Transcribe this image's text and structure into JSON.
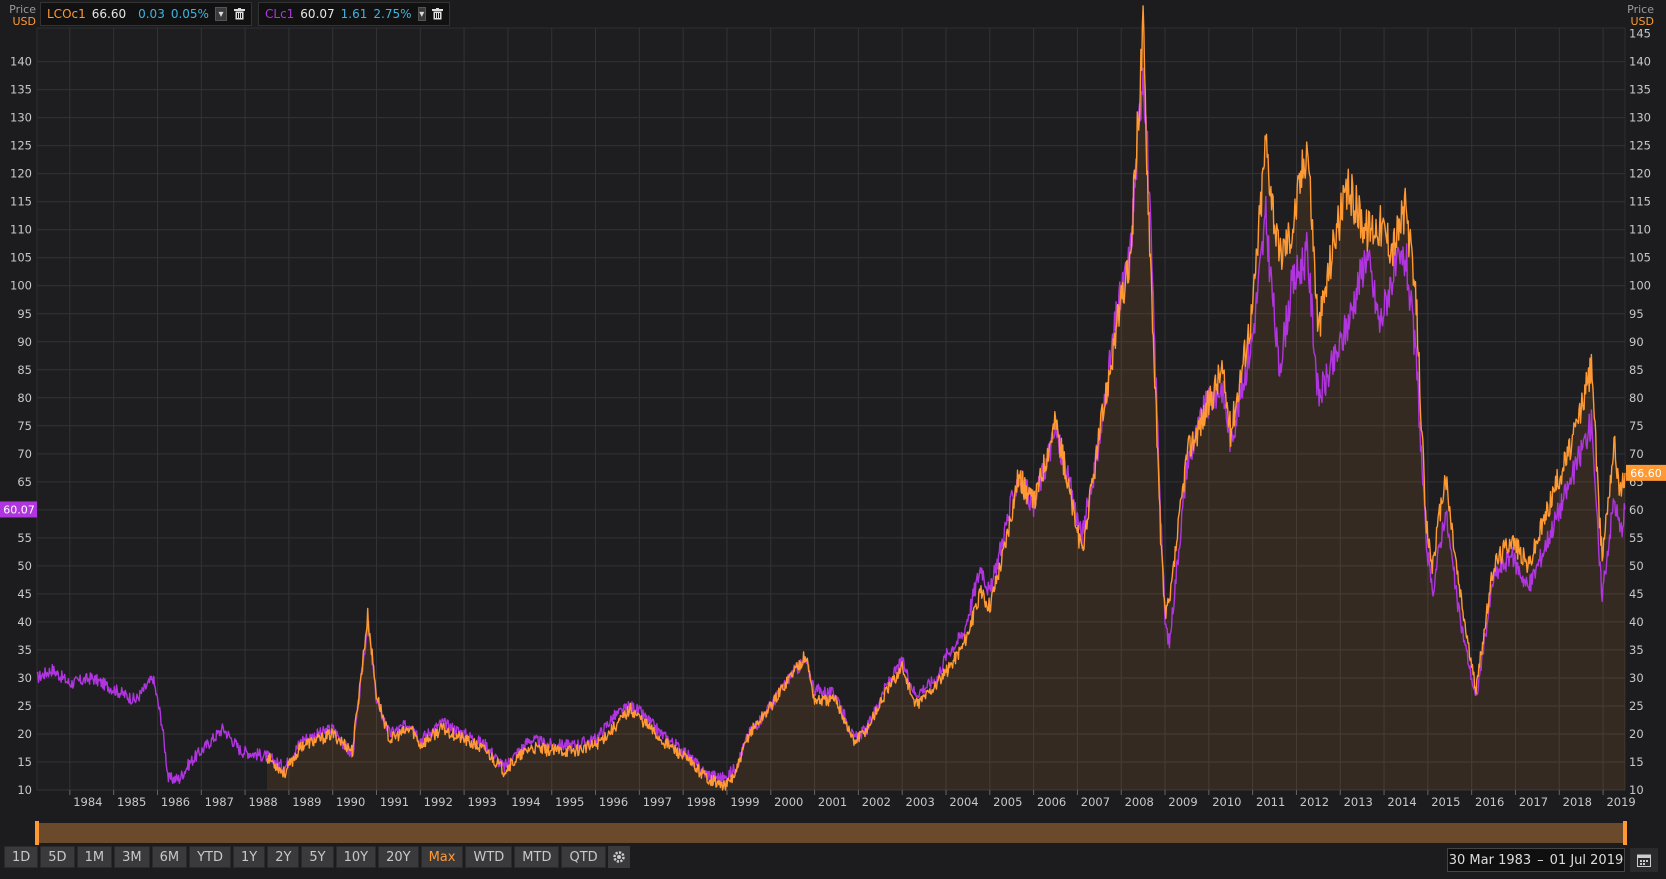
{
  "legend": [
    {
      "symbol": "LCOc1",
      "value": "66.60",
      "change": "0.03",
      "pct": "0.05%",
      "color": "#ff9933"
    },
    {
      "symbol": "CLc1",
      "value": "60.07",
      "change": "1.61",
      "pct": "2.75%",
      "color": "#b035e0"
    }
  ],
  "axis_header": {
    "left_price": "Price",
    "left_unit": "USD",
    "right_price": "Price",
    "right_unit": "USD"
  },
  "last_labels": {
    "left": "60.07",
    "right": "66.60"
  },
  "ranges": [
    "1D",
    "5D",
    "1M",
    "3M",
    "6M",
    "YTD",
    "1Y",
    "2Y",
    "5Y",
    "10Y",
    "20Y",
    "Max",
    "WTD",
    "MTD",
    "QTD"
  ],
  "active_range": "Max",
  "date_range": {
    "from": "30 Mar 1983",
    "to": "01 Jul 2019"
  },
  "chart_data": {
    "type": "line",
    "xlabel": "",
    "ylabel": "Price USD",
    "ylim": [
      10,
      146
    ],
    "xlim": [
      1983.25,
      2019.5
    ],
    "yticks": [
      10,
      15,
      20,
      25,
      30,
      35,
      40,
      45,
      50,
      55,
      60,
      65,
      70,
      75,
      80,
      85,
      90,
      95,
      100,
      105,
      110,
      115,
      120,
      125,
      130,
      135,
      140
    ],
    "yticks_right": [
      10,
      15,
      20,
      25,
      30,
      35,
      40,
      45,
      50,
      55,
      60,
      65,
      70,
      75,
      80,
      85,
      90,
      95,
      100,
      105,
      110,
      115,
      120,
      125,
      130,
      135,
      140,
      145
    ],
    "xticks": [
      "1984",
      "1985",
      "1986",
      "1987",
      "1988",
      "1989",
      "1990",
      "1991",
      "1992",
      "1993",
      "1994",
      "1995",
      "1996",
      "1997",
      "1998",
      "1999",
      "2000",
      "2001",
      "2002",
      "2003",
      "2004",
      "2005",
      "2006",
      "2007",
      "2008",
      "2009",
      "2010",
      "2011",
      "2012",
      "2013",
      "2014",
      "2015",
      "2016",
      "2017",
      "2018",
      "2019"
    ],
    "grid": true,
    "series": [
      {
        "name": "CLc1",
        "color": "#b035e0",
        "points": [
          [
            1983.25,
            30
          ],
          [
            1983.6,
            31.5
          ],
          [
            1984.0,
            29
          ],
          [
            1984.5,
            30
          ],
          [
            1985.0,
            28
          ],
          [
            1985.5,
            26
          ],
          [
            1985.9,
            30
          ],
          [
            1986.1,
            22
          ],
          [
            1986.25,
            12
          ],
          [
            1986.5,
            12
          ],
          [
            1986.75,
            15
          ],
          [
            1987.0,
            17
          ],
          [
            1987.5,
            21
          ],
          [
            1987.9,
            17
          ],
          [
            1988.5,
            16
          ],
          [
            1988.9,
            14
          ],
          [
            1989.3,
            19
          ],
          [
            1989.7,
            20
          ],
          [
            1990.0,
            21
          ],
          [
            1990.45,
            16
          ],
          [
            1990.7,
            33
          ],
          [
            1990.8,
            40
          ],
          [
            1991.0,
            26
          ],
          [
            1991.3,
            20
          ],
          [
            1991.8,
            22
          ],
          [
            1992.0,
            19
          ],
          [
            1992.5,
            22
          ],
          [
            1993.0,
            20
          ],
          [
            1993.5,
            18
          ],
          [
            1993.9,
            14
          ],
          [
            1994.5,
            19
          ],
          [
            1995.0,
            18
          ],
          [
            1995.5,
            18
          ],
          [
            1996.0,
            19
          ],
          [
            1996.4,
            23
          ],
          [
            1996.8,
            25
          ],
          [
            1997.0,
            24
          ],
          [
            1997.5,
            20
          ],
          [
            1998.0,
            17
          ],
          [
            1998.5,
            13
          ],
          [
            1998.95,
            12
          ],
          [
            1999.2,
            14
          ],
          [
            1999.5,
            20
          ],
          [
            2000.0,
            25
          ],
          [
            2000.5,
            31
          ],
          [
            2000.8,
            33
          ],
          [
            2001.0,
            28
          ],
          [
            2001.5,
            27
          ],
          [
            2001.9,
            19
          ],
          [
            2002.2,
            21
          ],
          [
            2002.6,
            28
          ],
          [
            2003.0,
            33
          ],
          [
            2003.3,
            27
          ],
          [
            2003.8,
            30
          ],
          [
            2004.0,
            34
          ],
          [
            2004.4,
            38
          ],
          [
            2004.8,
            50
          ],
          [
            2005.0,
            45
          ],
          [
            2005.3,
            55
          ],
          [
            2005.65,
            66
          ],
          [
            2006.0,
            61
          ],
          [
            2006.5,
            74
          ],
          [
            2006.9,
            62
          ],
          [
            2007.1,
            55
          ],
          [
            2007.5,
            72
          ],
          [
            2007.9,
            95
          ],
          [
            2008.2,
            105
          ],
          [
            2008.5,
            140
          ],
          [
            2008.6,
            124
          ],
          [
            2008.9,
            60
          ],
          [
            2009.0,
            40
          ],
          [
            2009.1,
            36
          ],
          [
            2009.5,
            68
          ],
          [
            2009.9,
            78
          ],
          [
            2010.3,
            82
          ],
          [
            2010.5,
            72
          ],
          [
            2011.0,
            91
          ],
          [
            2011.3,
            112
          ],
          [
            2011.6,
            85
          ],
          [
            2011.9,
            100
          ],
          [
            2012.25,
            106
          ],
          [
            2012.5,
            80
          ],
          [
            2012.9,
            87
          ],
          [
            2013.2,
            94
          ],
          [
            2013.6,
            106
          ],
          [
            2013.9,
            93
          ],
          [
            2014.2,
            102
          ],
          [
            2014.5,
            105
          ],
          [
            2014.75,
            85
          ],
          [
            2014.95,
            55
          ],
          [
            2015.1,
            45
          ],
          [
            2015.4,
            60
          ],
          [
            2015.7,
            42
          ],
          [
            2016.0,
            30
          ],
          [
            2016.1,
            26
          ],
          [
            2016.5,
            48
          ],
          [
            2016.9,
            52
          ],
          [
            2017.3,
            46
          ],
          [
            2017.9,
            58
          ],
          [
            2018.3,
            66
          ],
          [
            2018.75,
            76
          ],
          [
            2018.9,
            52
          ],
          [
            2018.98,
            45
          ],
          [
            2019.25,
            62
          ],
          [
            2019.4,
            56
          ],
          [
            2019.5,
            60.07
          ]
        ]
      },
      {
        "name": "LCOc1",
        "color": "#ff9933",
        "points": [
          [
            1988.5,
            16
          ],
          [
            1988.9,
            13
          ],
          [
            1989.3,
            18
          ],
          [
            1989.7,
            19
          ],
          [
            1990.0,
            20
          ],
          [
            1990.45,
            17
          ],
          [
            1990.7,
            34
          ],
          [
            1990.8,
            41
          ],
          [
            1991.0,
            27
          ],
          [
            1991.3,
            19
          ],
          [
            1991.8,
            21
          ],
          [
            1992.0,
            18
          ],
          [
            1992.5,
            21
          ],
          [
            1993.0,
            19
          ],
          [
            1993.5,
            17
          ],
          [
            1993.9,
            13.5
          ],
          [
            1994.5,
            17.5
          ],
          [
            1995.0,
            17
          ],
          [
            1995.5,
            17
          ],
          [
            1996.0,
            18
          ],
          [
            1996.4,
            21
          ],
          [
            1996.8,
            24.5
          ],
          [
            1997.0,
            23
          ],
          [
            1997.5,
            19
          ],
          [
            1998.0,
            16
          ],
          [
            1998.5,
            12.5
          ],
          [
            1998.95,
            10.5
          ],
          [
            1999.2,
            13
          ],
          [
            1999.5,
            20
          ],
          [
            2000.0,
            25
          ],
          [
            2000.5,
            31
          ],
          [
            2000.8,
            34
          ],
          [
            2001.0,
            26
          ],
          [
            2001.5,
            26
          ],
          [
            2001.9,
            18.5
          ],
          [
            2002.2,
            21
          ],
          [
            2002.6,
            27
          ],
          [
            2003.0,
            32
          ],
          [
            2003.3,
            25
          ],
          [
            2003.8,
            29
          ],
          [
            2004.0,
            31
          ],
          [
            2004.4,
            36
          ],
          [
            2004.8,
            45
          ],
          [
            2005.0,
            43
          ],
          [
            2005.3,
            52
          ],
          [
            2005.65,
            66
          ],
          [
            2006.0,
            61
          ],
          [
            2006.5,
            76
          ],
          [
            2006.9,
            60
          ],
          [
            2007.1,
            52
          ],
          [
            2007.5,
            73
          ],
          [
            2007.9,
            93
          ],
          [
            2008.2,
            104
          ],
          [
            2008.5,
            146
          ],
          [
            2008.6,
            120
          ],
          [
            2008.9,
            55
          ],
          [
            2009.0,
            42
          ],
          [
            2009.1,
            43
          ],
          [
            2009.5,
            70
          ],
          [
            2009.9,
            77
          ],
          [
            2010.3,
            85
          ],
          [
            2010.5,
            74
          ],
          [
            2011.0,
            96
          ],
          [
            2011.3,
            126
          ],
          [
            2011.6,
            105
          ],
          [
            2011.9,
            110
          ],
          [
            2012.25,
            126
          ],
          [
            2012.5,
            92
          ],
          [
            2012.9,
            110
          ],
          [
            2013.2,
            117
          ],
          [
            2013.6,
            110
          ],
          [
            2013.9,
            111
          ],
          [
            2014.2,
            107
          ],
          [
            2014.5,
            114
          ],
          [
            2014.75,
            95
          ],
          [
            2014.95,
            58
          ],
          [
            2015.1,
            50
          ],
          [
            2015.4,
            66
          ],
          [
            2015.7,
            47
          ],
          [
            2016.0,
            32
          ],
          [
            2016.1,
            28
          ],
          [
            2016.5,
            50
          ],
          [
            2016.9,
            55
          ],
          [
            2017.3,
            50
          ],
          [
            2017.9,
            64
          ],
          [
            2018.3,
            72
          ],
          [
            2018.75,
            86
          ],
          [
            2018.9,
            60
          ],
          [
            2018.98,
            52
          ],
          [
            2019.25,
            72
          ],
          [
            2019.4,
            63
          ],
          [
            2019.5,
            66.6
          ]
        ]
      }
    ]
  }
}
